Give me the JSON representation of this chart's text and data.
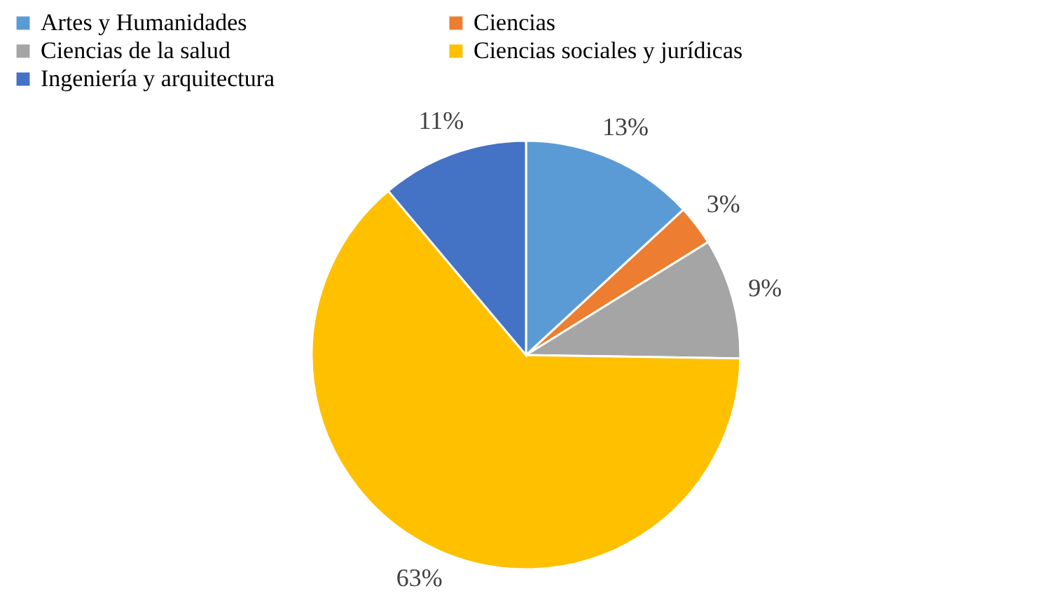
{
  "chart_data": {
    "type": "pie",
    "categories": [
      "Artes y Humanidades",
      "Ciencias",
      "Ciencias de la salud",
      "Ciencias sociales y jurídicas",
      "Ingeniería y arquitectura"
    ],
    "values": [
      13,
      3,
      9,
      63,
      11
    ],
    "colors": [
      "#5b9bd5",
      "#ed7d31",
      "#a5a5a5",
      "#ffc000",
      "#4472c4"
    ],
    "value_labels": [
      "13%",
      "3%",
      "9%",
      "63%",
      "11%"
    ],
    "legend": "top"
  }
}
